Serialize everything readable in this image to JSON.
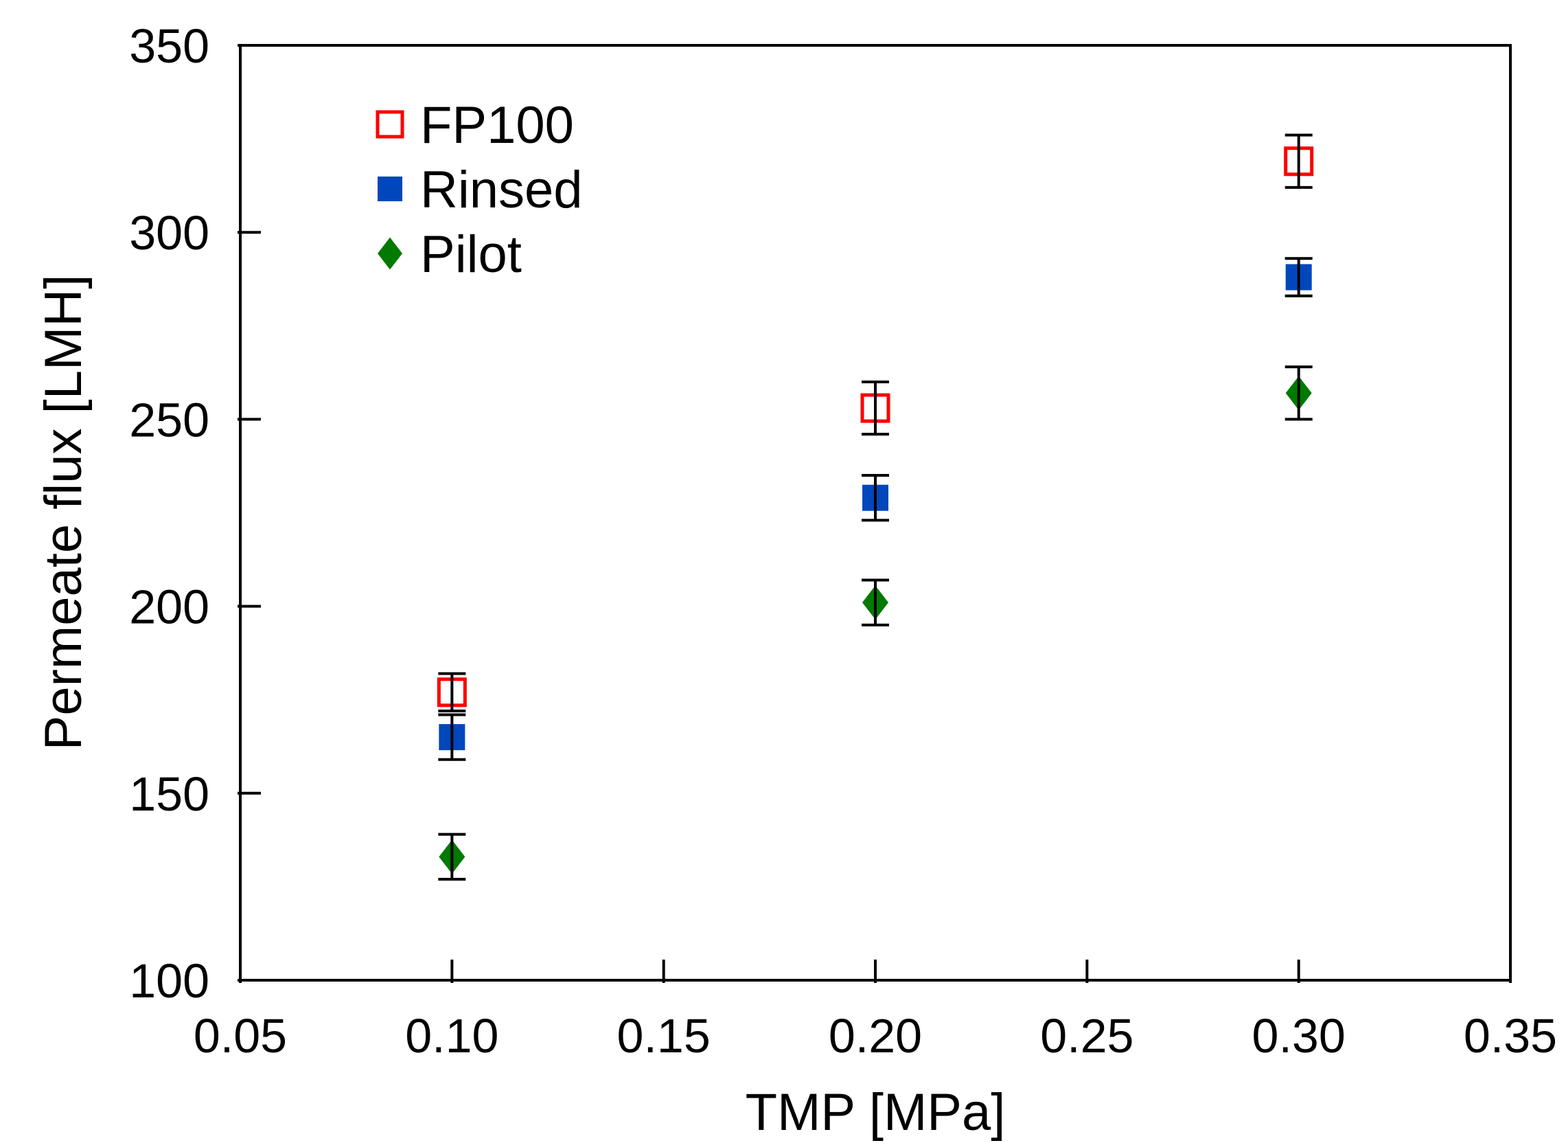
{
  "chart_data": {
    "type": "scatter",
    "title": "",
    "xlabel": "TMP [MPa]",
    "ylabel": "Permeate flux [LMH]",
    "xlim": [
      0.05,
      0.35
    ],
    "ylim": [
      100,
      350
    ],
    "x_ticks": [
      "0.05",
      "0.10",
      "0.15",
      "0.20",
      "0.25",
      "0.30",
      "0.35"
    ],
    "y_ticks": [
      "100",
      "150",
      "200",
      "250",
      "300",
      "350"
    ],
    "legend_position": "top-left",
    "grid": false,
    "series": [
      {
        "name": "FP100",
        "marker": "open-square",
        "color": "#ff0000",
        "x": [
          0.1,
          0.2,
          0.3
        ],
        "y": [
          177,
          253,
          319
        ],
        "err": [
          5,
          7,
          7
        ]
      },
      {
        "name": "Rinsed",
        "marker": "filled-square",
        "color": "#0047bb",
        "x": [
          0.1,
          0.2,
          0.3
        ],
        "y": [
          165,
          229,
          288
        ],
        "err": [
          6,
          6,
          5
        ]
      },
      {
        "name": "Pilot",
        "marker": "diamond",
        "color": "#007a00",
        "x": [
          0.1,
          0.2,
          0.3
        ],
        "y": [
          133,
          201,
          257
        ],
        "err": [
          6,
          6,
          7
        ]
      }
    ]
  }
}
